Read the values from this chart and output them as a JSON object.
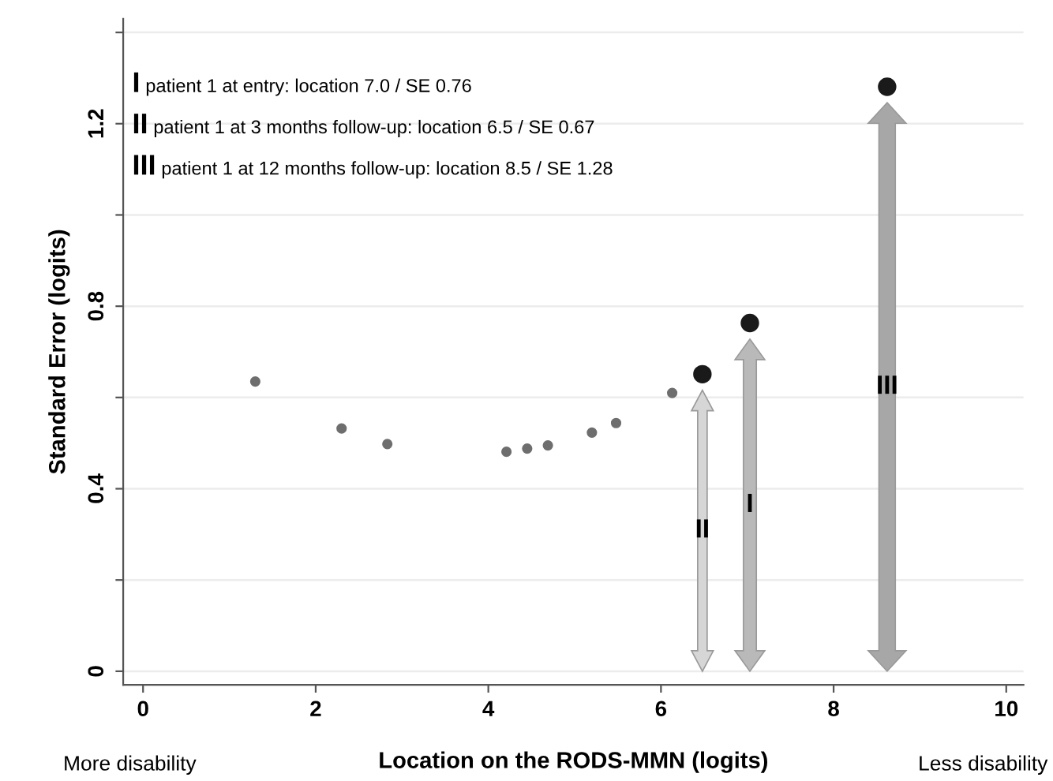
{
  "chart_data": {
    "type": "scatter",
    "xlabel": "Location on the RODS-MMN (logits)",
    "ylabel": "Standard Error (logits)",
    "series": [
      {
        "color": "#6e6e6e",
        "marker": "circle",
        "x": [
          1.3,
          2.3,
          2.83,
          4.21,
          4.45,
          4.69,
          5.2,
          5.48,
          6.13
        ],
        "values": [
          0.635,
          0.532,
          0.498,
          0.481,
          0.488,
          0.495,
          0.523,
          0.544,
          0.61
        ]
      },
      {
        "color": "#1a1a1a",
        "marker": "circle",
        "x": [
          6.48,
          7.03,
          8.62
        ],
        "values": [
          0.651,
          0.763,
          1.281
        ]
      }
    ],
    "xlim": [
      -0.23,
      10.2
    ],
    "ylim": [
      -0.03,
      1.43
    ],
    "xticks": [
      0,
      2,
      4,
      6,
      8,
      10
    ],
    "yticks": [
      0,
      {
        "value": 0.2,
        "label": null
      },
      0.4,
      {
        "value": 0.6,
        "label": null
      },
      0.8,
      {
        "value": 1.0,
        "label": null
      },
      1.2,
      {
        "value": 1.4,
        "label": null
      }
    ],
    "grid": "y",
    "legend": false,
    "annotations": [
      "I patient 1 at entry: location 7.0 / SE 0.76",
      "II patient 1 at 3 months follow-up: location 6.5 / SE 0.67",
      "III patient 1 at 12 months follow-up: location 8.5 / SE 1.28",
      "II",
      "I",
      "III",
      "More disability",
      "Less disability"
    ]
  }
}
